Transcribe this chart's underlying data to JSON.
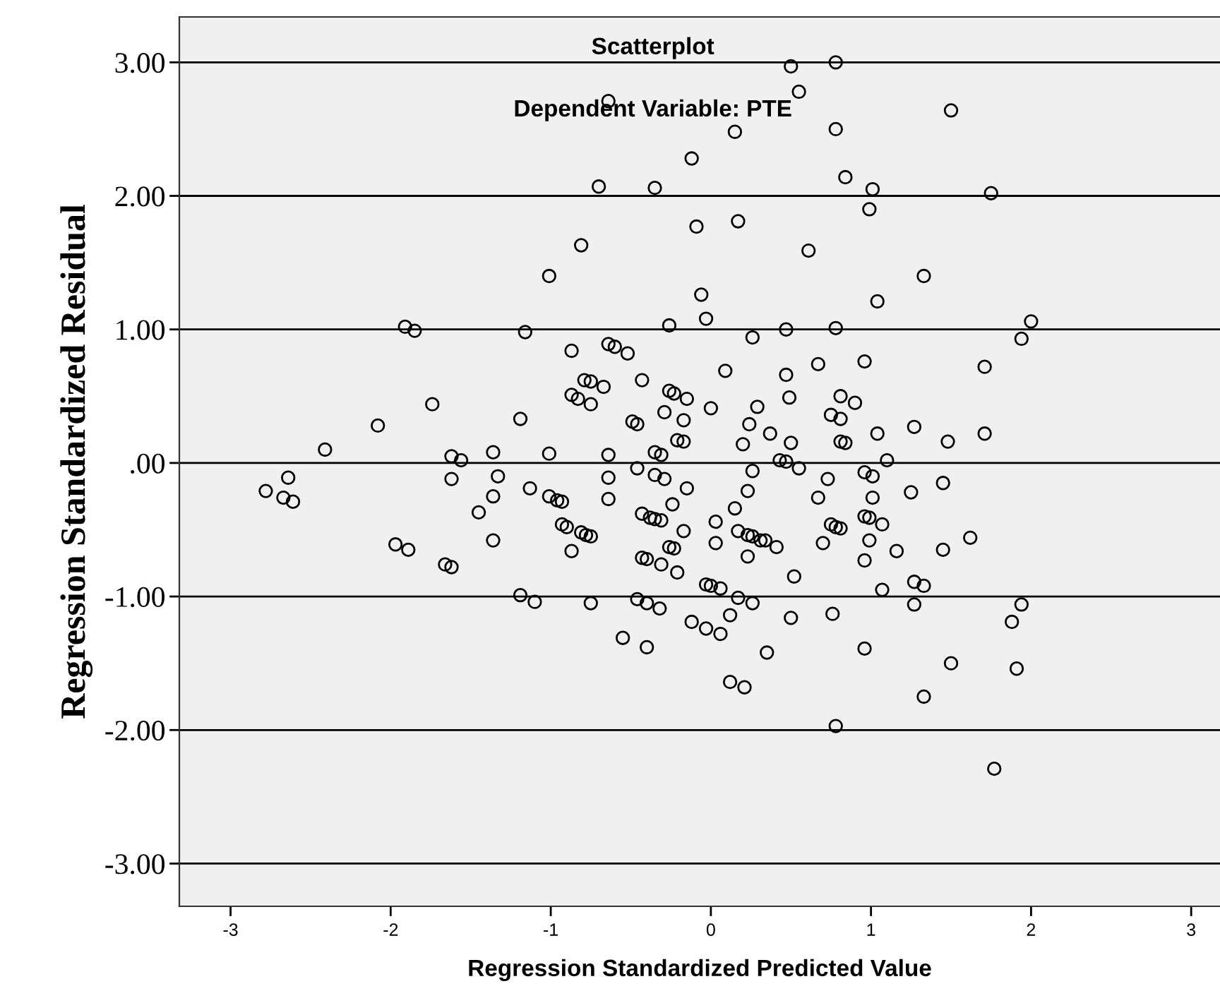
{
  "chart_data": {
    "type": "scatter",
    "title": "Scatterplot",
    "subtitle": "Dependent Variable: PTE",
    "xlabel": "Regression Standardized Predicted Value",
    "ylabel": "Regression Standardized Residual",
    "xlim": [
      -3.32,
      3.18
    ],
    "ylim": [
      -3.32,
      3.34
    ],
    "xticks": [
      -3,
      -2,
      -1,
      0,
      1,
      2,
      3
    ],
    "yticks": [
      {
        "value": 3,
        "label": "3.00"
      },
      {
        "value": 2,
        "label": "2.00"
      },
      {
        "value": 1,
        "label": "1.00"
      },
      {
        "value": 0,
        "label": ".00"
      },
      {
        "value": -1,
        "label": "-1.00"
      },
      {
        "value": -2,
        "label": "-2.00"
      },
      {
        "value": -3,
        "label": "-3.00"
      }
    ],
    "grid": "y",
    "marker": "circle",
    "legend": false,
    "series": [
      {
        "color": "#000000",
        "x": [
          0.5,
          0.78,
          0.55,
          -0.64,
          1.5,
          0.15,
          0.78,
          -0.12,
          -0.7,
          -0.35,
          0.84,
          1.01,
          1.75,
          0.99,
          -0.09,
          0.17,
          -0.81,
          0.61,
          -1.01,
          1.33,
          -0.06,
          -0.03,
          1.04,
          2.0,
          -1.91,
          -1.85,
          -1.16,
          -0.26,
          0.26,
          0.47,
          0.78,
          1.94,
          -0.64,
          -0.6,
          -0.87,
          -0.52,
          0.96,
          0.67,
          0.09,
          0.47,
          1.71,
          -1.74,
          -2.08,
          -2.41,
          -1.19,
          -0.87,
          -0.83,
          -0.79,
          -0.75,
          -0.67,
          -0.75,
          -0.43,
          -0.26,
          -0.23,
          -0.15,
          -0.29,
          -0.17,
          -0.49,
          -0.46,
          0.0,
          0.29,
          0.49,
          0.81,
          0.9,
          0.75,
          0.81,
          0.24,
          1.27,
          0.37,
          1.04,
          1.71,
          -0.21,
          -0.17,
          0.2,
          0.5,
          0.81,
          0.84,
          1.48,
          0.43,
          0.47,
          1.1,
          -1.62,
          -1.56,
          -1.36,
          -1.01,
          -0.64,
          -0.35,
          -0.31,
          -0.46,
          0.55,
          -2.64,
          -2.78,
          -2.67,
          -2.61,
          -1.62,
          -1.33,
          -0.64,
          -0.35,
          -0.29,
          0.26,
          0.73,
          0.96,
          1.01,
          1.45,
          -1.36,
          -1.13,
          -1.01,
          -0.96,
          -0.93,
          -0.64,
          -0.24,
          -0.15,
          0.15,
          0.23,
          0.67,
          1.01,
          1.25,
          -1.45,
          -0.43,
          -0.38,
          -0.35,
          -0.31,
          0.03,
          -0.17,
          -0.93,
          -0.9,
          -0.81,
          -0.78,
          -0.75,
          0.17,
          0.23,
          0.26,
          0.31,
          0.34,
          0.75,
          0.78,
          0.81,
          0.96,
          0.99,
          1.07,
          1.62,
          -1.97,
          -1.89,
          -1.36,
          -0.26,
          -0.23,
          0.03,
          0.41,
          0.7,
          0.99,
          1.16,
          1.45,
          -0.87,
          -1.66,
          -1.62,
          -0.43,
          -0.4,
          -0.31,
          0.23,
          -0.21,
          0.52,
          0.96,
          -0.03,
          0.0,
          0.06,
          1.27,
          1.33,
          1.07,
          -1.19,
          -1.1,
          -0.75,
          -0.46,
          -0.4,
          -0.32,
          0.17,
          0.26,
          1.27,
          1.94,
          -0.12,
          -0.03,
          0.06,
          0.12,
          0.5,
          0.76,
          1.88,
          -0.55,
          -0.4,
          0.35,
          0.96,
          1.5,
          1.91,
          0.12,
          0.21,
          1.33,
          0.78,
          1.77
        ],
        "values": [
          2.97,
          3.0,
          2.78,
          2.71,
          2.64,
          2.48,
          2.5,
          2.28,
          2.07,
          2.06,
          2.14,
          2.05,
          2.02,
          1.9,
          1.77,
          1.81,
          1.63,
          1.59,
          1.4,
          1.4,
          1.26,
          1.08,
          1.21,
          1.06,
          1.02,
          0.99,
          0.98,
          1.03,
          0.94,
          1.0,
          1.01,
          0.93,
          0.89,
          0.87,
          0.84,
          0.82,
          0.76,
          0.74,
          0.69,
          0.66,
          0.72,
          0.44,
          0.28,
          0.1,
          0.33,
          0.51,
          0.48,
          0.62,
          0.61,
          0.57,
          0.44,
          0.62,
          0.54,
          0.52,
          0.48,
          0.38,
          0.32,
          0.31,
          0.29,
          0.41,
          0.42,
          0.49,
          0.5,
          0.45,
          0.36,
          0.33,
          0.29,
          0.27,
          0.22,
          0.22,
          0.22,
          0.17,
          0.16,
          0.14,
          0.15,
          0.16,
          0.15,
          0.16,
          0.02,
          0.01,
          0.02,
          0.05,
          0.02,
          0.08,
          0.07,
          0.06,
          0.08,
          0.06,
          -0.04,
          -0.04,
          -0.11,
          -0.21,
          -0.26,
          -0.29,
          -0.12,
          -0.1,
          -0.11,
          -0.09,
          -0.12,
          -0.06,
          -0.12,
          -0.07,
          -0.1,
          -0.15,
          -0.25,
          -0.19,
          -0.25,
          -0.28,
          -0.29,
          -0.27,
          -0.31,
          -0.19,
          -0.34,
          -0.21,
          -0.26,
          -0.26,
          -0.22,
          -0.37,
          -0.38,
          -0.41,
          -0.42,
          -0.43,
          -0.44,
          -0.51,
          -0.46,
          -0.48,
          -0.52,
          -0.54,
          -0.55,
          -0.51,
          -0.54,
          -0.55,
          -0.58,
          -0.58,
          -0.46,
          -0.48,
          -0.49,
          -0.4,
          -0.41,
          -0.46,
          -0.56,
          -0.61,
          -0.65,
          -0.58,
          -0.63,
          -0.64,
          -0.6,
          -0.63,
          -0.6,
          -0.58,
          -0.66,
          -0.65,
          -0.66,
          -0.76,
          -0.78,
          -0.71,
          -0.72,
          -0.76,
          -0.7,
          -0.82,
          -0.85,
          -0.73,
          -0.91,
          -0.92,
          -0.94,
          -0.89,
          -0.92,
          -0.95,
          -0.99,
          -1.04,
          -1.05,
          -1.02,
          -1.05,
          -1.09,
          -1.01,
          -1.05,
          -1.06,
          -1.06,
          -1.19,
          -1.24,
          -1.28,
          -1.14,
          -1.16,
          -1.13,
          -1.19,
          -1.31,
          -1.38,
          -1.42,
          -1.39,
          -1.5,
          -1.54,
          -1.64,
          -1.68,
          -1.75,
          -1.97,
          -2.29
        ]
      }
    ]
  }
}
